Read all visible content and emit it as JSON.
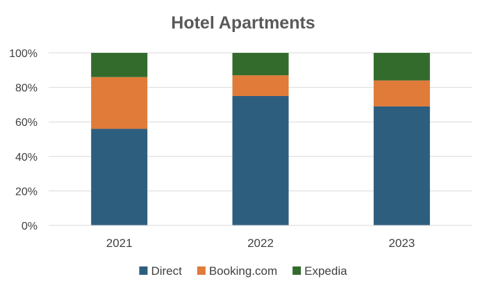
{
  "chart_data": {
    "type": "bar",
    "stacked": true,
    "percent_stacked": true,
    "title": "Hotel Apartments",
    "xlabel": "",
    "ylabel": "",
    "categories": [
      "2021",
      "2022",
      "2023"
    ],
    "series": [
      {
        "name": "Direct",
        "values": [
          56,
          75,
          69
        ],
        "color": "#2E5E7E"
      },
      {
        "name": "Booking.com",
        "values": [
          30,
          12,
          15
        ],
        "color": "#E07B39"
      },
      {
        "name": "Expedia",
        "values": [
          14,
          13,
          16
        ],
        "color": "#336B2C"
      }
    ],
    "ylim": [
      0,
      100
    ],
    "y_ticks": [
      "0%",
      "20%",
      "40%",
      "60%",
      "80%",
      "100%"
    ],
    "grid": true,
    "legend_position": "bottom"
  }
}
